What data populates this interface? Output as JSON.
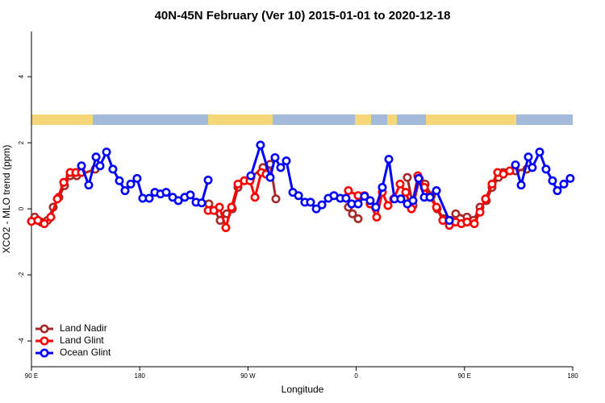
{
  "chart_data": {
    "type": "line",
    "title": "40N-45N February (Ver 10)   2015-01-01 to 2020-12-18",
    "x_label": "Longitude",
    "y_label": "XCO2 - MLO trend (ppm)",
    "xlim": [
      90,
      540
    ],
    "ylim": [
      -4.78,
      5.37
    ],
    "xticks": [
      {
        "value": 90,
        "label": "90 E"
      },
      180,
      {
        "value": 270,
        "label": "90 W"
      },
      {
        "value": 360,
        "label": "0"
      },
      {
        "value": 450,
        "label": "90 E"
      },
      {
        "value": 540,
        "label": "180"
      }
    ],
    "yticks": [
      -4,
      -2,
      0,
      2,
      4
    ],
    "legend": "bottom-left",
    "series": [
      {
        "name": "Land Nadir",
        "color": "#a52a2a",
        "x": [
          92.7,
          98.0,
          103.4,
          108.1,
          112.8,
          117.5,
          122.2,
          127.6,
          143.0,
          null,
          237.5,
          242.2,
          246.9,
          252.3,
          257.0,
          261.7,
          267.0,
          272.4,
          282.5,
          288.5,
          293.2,
          null,
          353.5,
          356.9,
          361.6,
          null,
          402.5,
          407.2,
          412.6,
          417.3,
          422.6,
          427.3,
          432.7,
          438.0,
          442.7,
          452.1,
          457.5,
          462.9,
          468.2,
          472.9,
          478.3,
          482.3,
          492.4,
          501.8
        ],
        "values": [
          -0.25,
          -0.4,
          -0.35,
          0.05,
          0.35,
          0.7,
          1.0,
          1.0,
          1.2,
          null,
          0.15,
          -0.05,
          -0.35,
          -0.15,
          0.0,
          0.65,
          0.85,
          0.95,
          1.25,
          1.35,
          0.3,
          null,
          0.05,
          -0.15,
          -0.3,
          null,
          0.95,
          0.1,
          0.9,
          0.75,
          0.4,
          0.0,
          -0.3,
          -0.35,
          -0.15,
          -0.25,
          -0.35,
          0.05,
          0.25,
          0.65,
          0.95,
          1.1,
          1.15,
          1.2
        ]
      },
      {
        "name": "Land Glint",
        "color": "#ff0000",
        "x": [
          90.0,
          95.4,
          100.7,
          106.1,
          111.5,
          116.8,
          122.2,
          126.9,
          131.6,
          null,
          236.9,
          241.6,
          246.3,
          251.6,
          256.3,
          261.7,
          267.0,
          271.7,
          275.8,
          281.1,
          285.1,
          null,
          353.5,
          361.6,
          366.9,
          371.6,
          377.0,
          381.7,
          386.4,
          391.1,
          396.5,
          401.2,
          405.9,
          411.2,
          416.6,
          421.3,
          426.7,
          432.0,
          437.4,
          442.7,
          447.4,
          452.1,
          458.2,
          462.9,
          467.5,
          472.9,
          477.6,
          482.3,
          487.7
        ],
        "values": [
          -0.38,
          -0.35,
          -0.45,
          -0.25,
          0.3,
          0.8,
          1.1,
          1.1,
          1.1,
          null,
          -0.05,
          -0.05,
          0.05,
          -0.57,
          0.05,
          0.75,
          0.85,
          0.85,
          0.35,
          1.1,
          1.05,
          null,
          0.55,
          0.4,
          0.4,
          0.15,
          -0.25,
          0.5,
          0.1,
          0.3,
          0.75,
          0.5,
          0.0,
          1.0,
          0.65,
          0.35,
          0.05,
          -0.35,
          -0.5,
          -0.4,
          -0.45,
          -0.4,
          -0.45,
          -0.1,
          0.3,
          0.75,
          1.1,
          1.05,
          1.15
        ]
      },
      {
        "name": "Ocean Glint",
        "color": "#0000ff",
        "x": [
          131.6,
          137.6,
          143.7,
          147.0,
          152.4,
          157.7,
          163.1,
          167.8,
          172.5,
          177.8,
          182.5,
          187.9,
          192.6,
          197.3,
          202.0,
          207.4,
          212.1,
          217.4,
          222.1,
          226.8,
          231.5,
          236.9,
          null,
          272.4,
          280.4,
          288.5,
          292.5,
          297.2,
          301.9,
          307.3,
          312.0,
          317.3,
          322.0,
          326.8,
          331.5,
          336.8,
          341.5,
          346.8,
          351.5,
          356.2,
          361.6,
          366.9,
          371.6,
          376.3,
          381.7,
          387.1,
          391.8,
          397.1,
          402.5,
          407.2,
          411.9,
          416.6,
          421.3,
          426.7,
          437.4,
          null,
          492.4,
          497.1,
          503.1,
          506.4,
          512.5,
          517.8,
          523.2,
          527.2,
          532.6,
          537.9
        ],
        "values": [
          1.3,
          0.72,
          1.57,
          1.3,
          1.72,
          1.2,
          0.85,
          0.55,
          0.75,
          0.92,
          0.32,
          0.32,
          0.5,
          0.45,
          0.5,
          0.35,
          0.25,
          0.35,
          0.42,
          0.2,
          0.18,
          0.87,
          null,
          1.0,
          1.93,
          0.95,
          1.55,
          1.25,
          1.45,
          0.5,
          0.4,
          0.2,
          0.2,
          0.0,
          0.12,
          0.32,
          0.4,
          0.32,
          0.32,
          0.15,
          0.15,
          0.38,
          0.25,
          0.05,
          0.65,
          1.5,
          0.3,
          0.3,
          0.15,
          0.25,
          0.92,
          0.35,
          0.35,
          0.55,
          -0.35,
          null,
          1.33,
          0.72,
          1.57,
          1.25,
          1.72,
          1.2,
          0.85,
          0.55,
          0.75,
          0.92
        ]
      }
    ]
  }
}
